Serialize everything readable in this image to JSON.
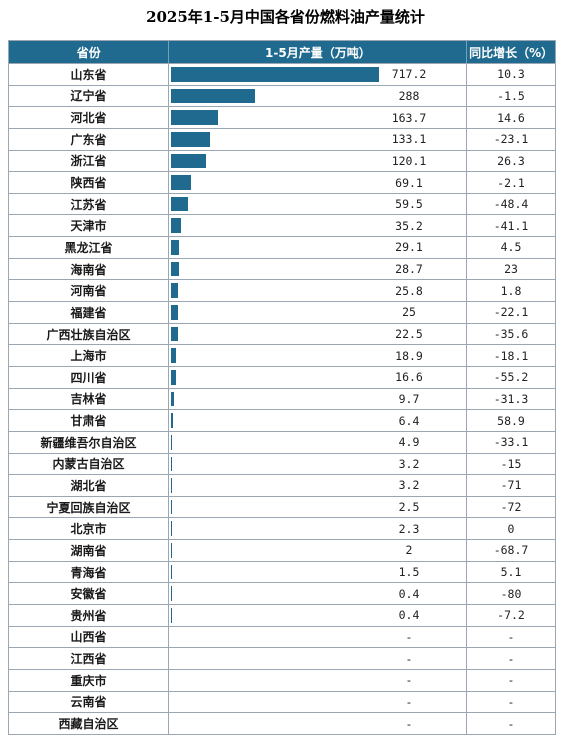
{
  "title": "2025年1-5月中国各省份燃料油产量统计",
  "colors": {
    "header_bg": "#1f6a8e",
    "bar": "#1f6a8e",
    "grid": "#9aa7b2"
  },
  "chart_data": {
    "type": "table",
    "columns": [
      "省份",
      "1-5月产量（万吨）",
      "同比增长（%）"
    ],
    "max_value": 717.2,
    "rows": [
      {
        "province": "山东省",
        "value": 717.2,
        "value_text": "717.2",
        "growth": "10.3"
      },
      {
        "province": "辽宁省",
        "value": 288,
        "value_text": "288",
        "growth": "-1.5"
      },
      {
        "province": "河北省",
        "value": 163.7,
        "value_text": "163.7",
        "growth": "14.6"
      },
      {
        "province": "广东省",
        "value": 133.1,
        "value_text": "133.1",
        "growth": "-23.1"
      },
      {
        "province": "浙江省",
        "value": 120.1,
        "value_text": "120.1",
        "growth": "26.3"
      },
      {
        "province": "陕西省",
        "value": 69.1,
        "value_text": "69.1",
        "growth": "-2.1"
      },
      {
        "province": "江苏省",
        "value": 59.5,
        "value_text": "59.5",
        "growth": "-48.4"
      },
      {
        "province": "天津市",
        "value": 35.2,
        "value_text": "35.2",
        "growth": "-41.1"
      },
      {
        "province": "黑龙江省",
        "value": 29.1,
        "value_text": "29.1",
        "growth": "4.5"
      },
      {
        "province": "海南省",
        "value": 28.7,
        "value_text": "28.7",
        "growth": "23"
      },
      {
        "province": "河南省",
        "value": 25.8,
        "value_text": "25.8",
        "growth": "1.8"
      },
      {
        "province": "福建省",
        "value": 25,
        "value_text": "25",
        "growth": "-22.1"
      },
      {
        "province": "广西壮族自治区",
        "value": 22.5,
        "value_text": "22.5",
        "growth": "-35.6"
      },
      {
        "province": "上海市",
        "value": 18.9,
        "value_text": "18.9",
        "growth": "-18.1"
      },
      {
        "province": "四川省",
        "value": 16.6,
        "value_text": "16.6",
        "growth": "-55.2"
      },
      {
        "province": "吉林省",
        "value": 9.7,
        "value_text": "9.7",
        "growth": "-31.3"
      },
      {
        "province": "甘肃省",
        "value": 6.4,
        "value_text": "6.4",
        "growth": "58.9"
      },
      {
        "province": "新疆维吾尔自治区",
        "value": 4.9,
        "value_text": "4.9",
        "growth": "-33.1"
      },
      {
        "province": "内蒙古自治区",
        "value": 3.2,
        "value_text": "3.2",
        "growth": "-15"
      },
      {
        "province": "湖北省",
        "value": 3.2,
        "value_text": "3.2",
        "growth": "-71"
      },
      {
        "province": "宁夏回族自治区",
        "value": 2.5,
        "value_text": "2.5",
        "growth": "-72"
      },
      {
        "province": "北京市",
        "value": 2.3,
        "value_text": "2.3",
        "growth": "0"
      },
      {
        "province": "湖南省",
        "value": 2,
        "value_text": "2",
        "growth": "-68.7"
      },
      {
        "province": "青海省",
        "value": 1.5,
        "value_text": "1.5",
        "growth": "5.1"
      },
      {
        "province": "安徽省",
        "value": 0.4,
        "value_text": "0.4",
        "growth": "-80"
      },
      {
        "province": "贵州省",
        "value": 0.4,
        "value_text": "0.4",
        "growth": "-7.2"
      },
      {
        "province": "山西省",
        "value": null,
        "value_text": "-",
        "growth": "-"
      },
      {
        "province": "江西省",
        "value": null,
        "value_text": "-",
        "growth": "-"
      },
      {
        "province": "重庆市",
        "value": null,
        "value_text": "-",
        "growth": "-"
      },
      {
        "province": "云南省",
        "value": null,
        "value_text": "-",
        "growth": "-"
      },
      {
        "province": "西藏自治区",
        "value": null,
        "value_text": "-",
        "growth": "-"
      }
    ]
  }
}
